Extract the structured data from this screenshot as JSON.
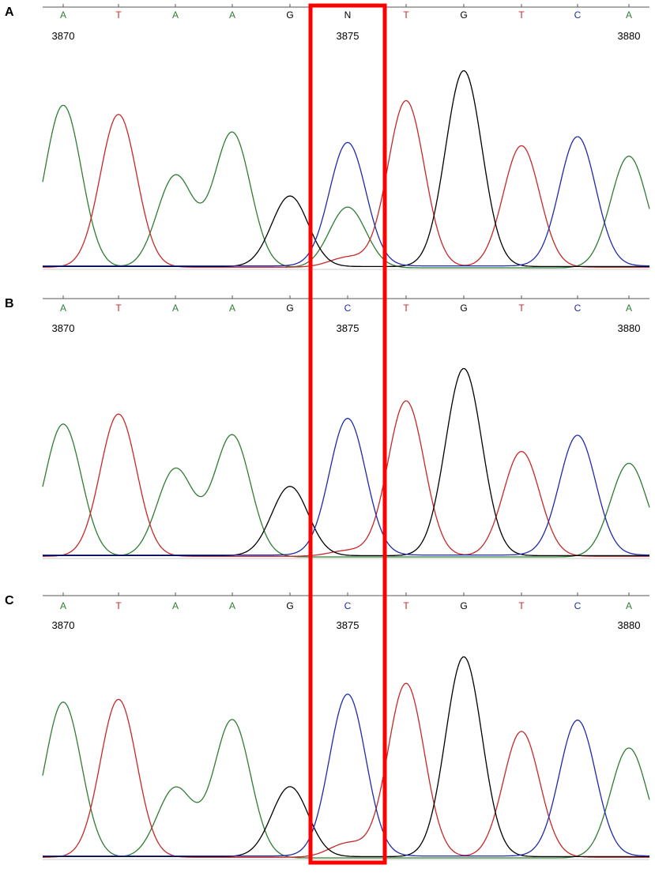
{
  "colors": {
    "A": "#2e7d32",
    "T": "#c62828",
    "G": "#000000",
    "C": "#1f2aa8",
    "N": "#000000",
    "highlight": "#ff0000"
  },
  "chart_data": [
    {
      "type": "line",
      "panel": "A",
      "bases": [
        "A",
        "T",
        "A",
        "A",
        "G",
        "N",
        "T",
        "G",
        "T",
        "C",
        "A"
      ],
      "positions": [
        {
          "base_index": 0,
          "label": "3870"
        },
        {
          "base_index": 5,
          "label": "3875"
        },
        {
          "base_index": 10,
          "label": "3880"
        }
      ],
      "peaks": {
        "A": [
          [
            0,
            0.83
          ],
          [
            2,
            0.47
          ],
          [
            3,
            0.69
          ],
          [
            5,
            0.31
          ],
          [
            10,
            0.57
          ]
        ],
        "T": [
          [
            1,
            0.78
          ],
          [
            5,
            0.05
          ],
          [
            6,
            0.85
          ],
          [
            8,
            0.62
          ]
        ],
        "G": [
          [
            4,
            0.36
          ],
          [
            7,
            1.0
          ]
        ],
        "C": [
          [
            5,
            0.63
          ],
          [
            9,
            0.66
          ]
        ]
      },
      "highlight_base_index": 5
    },
    {
      "type": "line",
      "panel": "B",
      "bases": [
        "A",
        "T",
        "A",
        "A",
        "G",
        "C",
        "T",
        "G",
        "T",
        "C",
        "A"
      ],
      "positions": [
        {
          "base_index": 0,
          "label": "3870"
        },
        {
          "base_index": 5,
          "label": "3875"
        },
        {
          "base_index": 10,
          "label": "3880"
        }
      ],
      "peaks": {
        "A": [
          [
            0,
            0.71
          ],
          [
            2,
            0.47
          ],
          [
            3,
            0.65
          ],
          [
            10,
            0.5
          ]
        ],
        "T": [
          [
            1,
            0.76
          ],
          [
            5,
            0.03
          ],
          [
            6,
            0.83
          ],
          [
            8,
            0.56
          ]
        ],
        "G": [
          [
            4,
            0.37
          ],
          [
            7,
            1.0
          ]
        ],
        "C": [
          [
            5,
            0.73
          ],
          [
            9,
            0.64
          ]
        ]
      },
      "highlight_base_index": 5
    },
    {
      "type": "line",
      "panel": "C",
      "bases": [
        "A",
        "T",
        "A",
        "A",
        "G",
        "C",
        "T",
        "G",
        "T",
        "C",
        "A"
      ],
      "positions": [
        {
          "base_index": 0,
          "label": "3870"
        },
        {
          "base_index": 5,
          "label": "3875"
        },
        {
          "base_index": 10,
          "label": "3880"
        }
      ],
      "peaks": {
        "A": [
          [
            0,
            0.78
          ],
          [
            2,
            0.35
          ],
          [
            3,
            0.69
          ],
          [
            10,
            0.55
          ]
        ],
        "T": [
          [
            1,
            0.79
          ],
          [
            5,
            0.07
          ],
          [
            6,
            0.87
          ],
          [
            8,
            0.63
          ]
        ],
        "G": [
          [
            4,
            0.35
          ],
          [
            7,
            1.0
          ]
        ],
        "C": [
          [
            5,
            0.81
          ],
          [
            9,
            0.68
          ]
        ]
      },
      "highlight_base_index": 5
    }
  ]
}
